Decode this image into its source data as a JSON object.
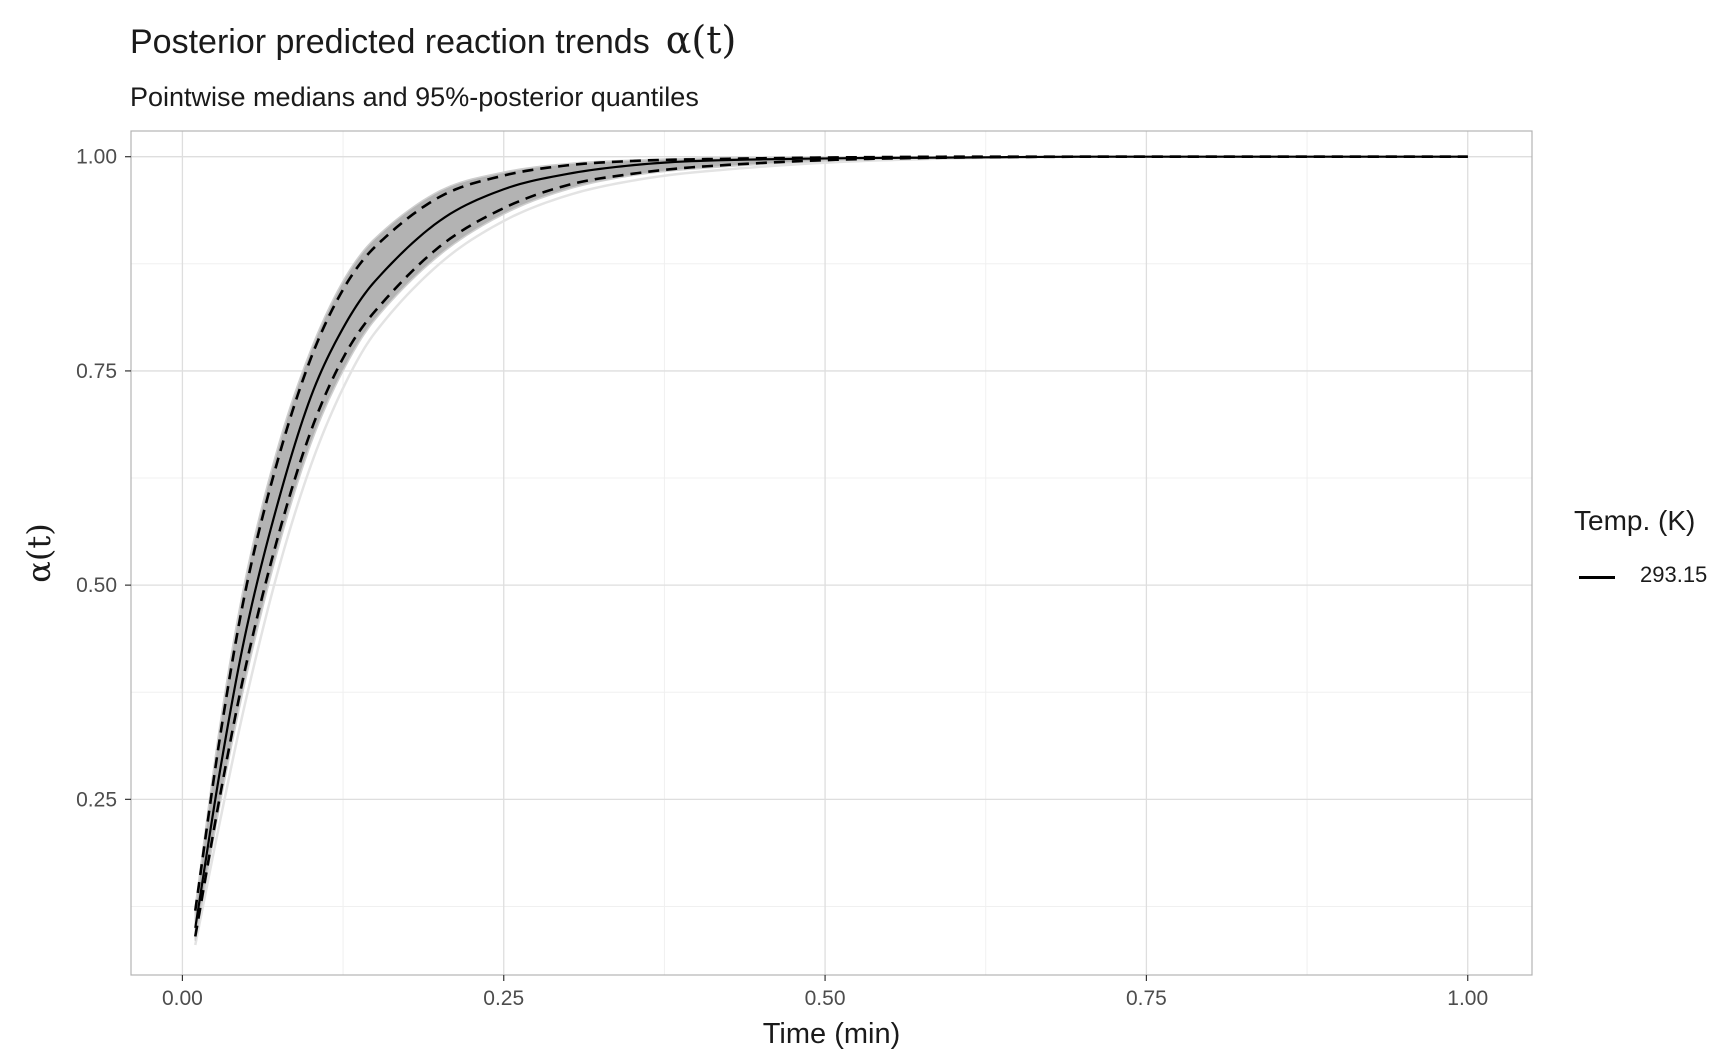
{
  "title": {
    "text": "Posterior predicted reaction trends",
    "symbol": "α(t)"
  },
  "subtitle": "Pointwise medians and 95%-posterior quantiles",
  "legend": {
    "title": "Temp. (K)",
    "items": [
      "293.15"
    ]
  },
  "colors": {
    "median_line": "#000000",
    "quantile_lines": "#000000",
    "posterior_band": "#b3b3b3",
    "posterior_draws": "#e3e3e3",
    "grid_major": "#dedede",
    "grid_minor": "#f0f0f0",
    "panel_border": "#b3b3b3"
  },
  "chart_data": {
    "type": "line",
    "xlabel": "Time (min)",
    "ylabel": "α(t)",
    "xlim": [
      -0.04,
      1.05
    ],
    "ylim": [
      0.045,
      1.03
    ],
    "x_ticks": [
      0.0,
      0.25,
      0.5,
      0.75,
      1.0
    ],
    "x_tick_labels": [
      "0.00",
      "0.25",
      "0.50",
      "0.75",
      "1.00"
    ],
    "y_ticks": [
      0.25,
      0.5,
      0.75,
      1.0
    ],
    "y_tick_labels": [
      "0.25",
      "0.50",
      "0.75",
      "1.00"
    ],
    "grid": true,
    "legend_position": "right",
    "x": [
      0.01,
      0.03,
      0.05,
      0.075,
      0.1,
      0.125,
      0.15,
      0.2,
      0.25,
      0.3,
      0.35,
      0.4,
      0.5,
      0.6,
      0.7,
      0.8,
      0.9,
      1.0
    ],
    "series": [
      {
        "name": "293.15",
        "role": "median",
        "style": "solid",
        "values": [
          0.1,
          0.29,
          0.45,
          0.6,
          0.72,
          0.8,
          0.855,
          0.925,
          0.962,
          0.98,
          0.99,
          0.995,
          0.998,
          0.999,
          1.0,
          1.0,
          1.0,
          1.0
        ]
      },
      {
        "role": "upper_quantile",
        "style": "dashed",
        "values": [
          0.12,
          0.33,
          0.5,
          0.65,
          0.765,
          0.845,
          0.895,
          0.953,
          0.978,
          0.99,
          0.995,
          0.997,
          0.999,
          1.0,
          1.0,
          1.0,
          1.0,
          1.0
        ]
      },
      {
        "role": "lower_quantile",
        "style": "dashed",
        "values": [
          0.09,
          0.26,
          0.41,
          0.56,
          0.68,
          0.765,
          0.82,
          0.895,
          0.94,
          0.967,
          0.98,
          0.988,
          0.996,
          0.999,
          1.0,
          1.0,
          1.0,
          1.0
        ]
      },
      {
        "role": "band_upper",
        "style": "fill",
        "values": [
          0.125,
          0.345,
          0.515,
          0.665,
          0.775,
          0.855,
          0.905,
          0.96,
          0.982,
          0.992,
          0.996,
          0.998,
          0.999,
          1.0,
          1.0,
          1.0,
          1.0,
          1.0
        ]
      },
      {
        "role": "band_lower",
        "style": "fill",
        "values": [
          0.085,
          0.25,
          0.395,
          0.545,
          0.665,
          0.75,
          0.81,
          0.885,
          0.933,
          0.962,
          0.978,
          0.986,
          0.995,
          0.999,
          1.0,
          1.0,
          1.0,
          1.0
        ]
      },
      {
        "role": "faint_draw",
        "style": "thin",
        "values": [
          0.08,
          0.23,
          0.37,
          0.52,
          0.64,
          0.73,
          0.795,
          0.875,
          0.925,
          0.955,
          0.972,
          0.982,
          0.993,
          0.998,
          1.0,
          1.0,
          1.0,
          1.0
        ]
      }
    ]
  }
}
